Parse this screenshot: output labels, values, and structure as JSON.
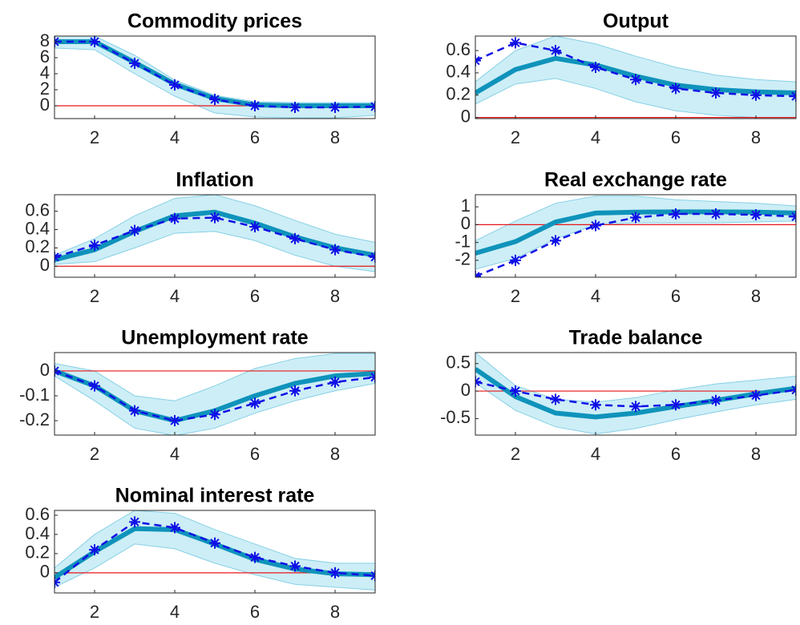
{
  "chart_data": [
    {
      "type": "line",
      "title": "Commodity prices",
      "x": [
        1,
        2,
        3,
        4,
        5,
        6,
        7,
        8,
        9
      ],
      "xlim": [
        1,
        9
      ],
      "xticks": [
        2,
        4,
        6,
        8
      ],
      "ylim": [
        -1.6,
        8.7
      ],
      "yticks": [
        0,
        2,
        4,
        6,
        8
      ],
      "hline": 0,
      "hline_color": "#e8161b",
      "band": {
        "color": "#cdeef6",
        "edge_color": "#86d0e6",
        "upper": [
          8.7,
          8.7,
          6.3,
          3.2,
          1.3,
          0.5,
          0.4,
          0.4,
          0.4
        ],
        "lower": [
          7.2,
          7.0,
          4.0,
          1.2,
          -0.9,
          -1.4,
          -1.5,
          -1.5,
          -1.2
        ]
      },
      "series": [
        {
          "color": "#0f93bb",
          "style": "solid",
          "values": [
            8.0,
            8.0,
            5.4,
            2.7,
            0.9,
            0.1,
            0.0,
            0.0,
            0.0
          ]
        },
        {
          "color": "#1010e6",
          "style": "dashed",
          "marker": "asterisk",
          "values": [
            8.0,
            8.0,
            5.3,
            2.6,
            0.8,
            0.0,
            -0.2,
            -0.2,
            -0.1
          ]
        }
      ]
    },
    {
      "type": "line",
      "title": "Output",
      "x": [
        1,
        2,
        3,
        4,
        5,
        6,
        7,
        8,
        9
      ],
      "xlim": [
        1,
        9
      ],
      "xticks": [
        2,
        4,
        6,
        8
      ],
      "ylim": [
        -0.01,
        0.73
      ],
      "yticks": [
        0,
        0.2,
        0.4,
        0.6
      ],
      "hline": 0,
      "hline_color": "#e8161b",
      "band": {
        "color": "#cdeef6",
        "edge_color": "#86d0e6",
        "upper": [
          0.32,
          0.6,
          0.73,
          0.66,
          0.55,
          0.45,
          0.38,
          0.34,
          0.32
        ],
        "lower": [
          0.12,
          0.3,
          0.35,
          0.26,
          0.14,
          0.06,
          0.02,
          0.0,
          0.0
        ]
      },
      "series": [
        {
          "color": "#0f93bb",
          "style": "solid",
          "values": [
            0.22,
            0.43,
            0.53,
            0.47,
            0.37,
            0.29,
            0.25,
            0.23,
            0.22
          ]
        },
        {
          "color": "#1010e6",
          "style": "dashed",
          "marker": "asterisk",
          "values": [
            0.51,
            0.67,
            0.6,
            0.45,
            0.34,
            0.26,
            0.22,
            0.2,
            0.19
          ]
        }
      ]
    },
    {
      "type": "line",
      "title": "Inflation",
      "x": [
        1,
        2,
        3,
        4,
        5,
        6,
        7,
        8,
        9
      ],
      "xlim": [
        1,
        9
      ],
      "xticks": [
        2,
        4,
        6,
        8
      ],
      "ylim": [
        -0.12,
        0.78
      ],
      "yticks": [
        0,
        0.2,
        0.4,
        0.6
      ],
      "hline": 0,
      "hline_color": "#e8161b",
      "band": {
        "color": "#cdeef6",
        "edge_color": "#86d0e6",
        "upper": [
          0.12,
          0.3,
          0.55,
          0.74,
          0.78,
          0.66,
          0.5,
          0.35,
          0.26
        ],
        "lower": [
          0.02,
          0.05,
          0.2,
          0.36,
          0.38,
          0.28,
          0.12,
          0.0,
          -0.06
        ]
      },
      "series": [
        {
          "color": "#0f93bb",
          "style": "solid",
          "values": [
            0.07,
            0.18,
            0.38,
            0.55,
            0.59,
            0.47,
            0.32,
            0.2,
            0.12
          ]
        },
        {
          "color": "#1010e6",
          "style": "dashed",
          "marker": "asterisk",
          "values": [
            0.1,
            0.23,
            0.39,
            0.52,
            0.53,
            0.43,
            0.3,
            0.18,
            0.1
          ]
        }
      ]
    },
    {
      "type": "line",
      "title": "Real exchange rate",
      "x": [
        1,
        2,
        3,
        4,
        5,
        6,
        7,
        8,
        9
      ],
      "xlim": [
        1,
        9
      ],
      "xticks": [
        2,
        4,
        6,
        8
      ],
      "ylim": [
        -2.95,
        1.68
      ],
      "yticks": [
        -2,
        -1,
        0,
        1
      ],
      "hline": 0,
      "hline_color": "#e8161b",
      "band": {
        "color": "#cdeef6",
        "edge_color": "#86d0e6",
        "upper": [
          -0.9,
          0.2,
          1.2,
          1.6,
          1.6,
          1.4,
          1.3,
          1.2,
          1.05
        ],
        "lower": [
          -2.5,
          -1.9,
          -0.8,
          0,
          0.1,
          0.1,
          0.1,
          0.15,
          0.2
        ]
      },
      "series": [
        {
          "color": "#0f93bb",
          "style": "solid",
          "values": [
            -1.6,
            -0.95,
            0.15,
            0.65,
            0.7,
            0.72,
            0.72,
            0.7,
            0.65
          ]
        },
        {
          "color": "#1010e6",
          "style": "dashed",
          "marker": "asterisk",
          "values": [
            -2.9,
            -2.0,
            -0.9,
            -0.05,
            0.4,
            0.6,
            0.6,
            0.55,
            0.45
          ]
        }
      ]
    },
    {
      "type": "line",
      "title": "Unemployment rate",
      "x": [
        1,
        2,
        3,
        4,
        5,
        6,
        7,
        8,
        9
      ],
      "xlim": [
        1,
        9
      ],
      "xticks": [
        2,
        4,
        6,
        8
      ],
      "ylim": [
        -0.258,
        0.074
      ],
      "yticks": [
        -0.2,
        -0.1,
        0
      ],
      "hline": 0,
      "hline_color": "#e8161b",
      "band": {
        "color": "#cdeef6",
        "edge_color": "#86d0e6",
        "upper": [
          0.03,
          0,
          -0.1,
          -0.12,
          -0.06,
          0.01,
          0.05,
          0.07,
          0.07
        ],
        "lower": [
          -0.02,
          -0.12,
          -0.23,
          -0.26,
          -0.23,
          -0.17,
          -0.12,
          -0.08,
          -0.05
        ]
      },
      "series": [
        {
          "color": "#0f93bb",
          "style": "solid",
          "values": [
            0,
            -0.06,
            -0.16,
            -0.2,
            -0.16,
            -0.1,
            -0.05,
            -0.02,
            -0.01
          ]
        },
        {
          "color": "#1010e6",
          "style": "dashed",
          "marker": "asterisk",
          "values": [
            0,
            -0.06,
            -0.16,
            -0.2,
            -0.175,
            -0.13,
            -0.08,
            -0.045,
            -0.025
          ]
        }
      ]
    },
    {
      "type": "line",
      "title": "Trade balance",
      "x": [
        1,
        2,
        3,
        4,
        5,
        6,
        7,
        8,
        9
      ],
      "xlim": [
        1,
        9
      ],
      "xticks": [
        2,
        4,
        6,
        8
      ],
      "ylim": [
        -0.8,
        0.7
      ],
      "yticks": [
        -0.5,
        0,
        0.5
      ],
      "hline": 0,
      "hline_color": "#e8161b",
      "band": {
        "color": "#cdeef6",
        "edge_color": "#86d0e6",
        "upper": [
          0.7,
          0.1,
          -0.15,
          -0.2,
          -0.12,
          0.02,
          0.13,
          0.2,
          0.27
        ],
        "lower": [
          0.15,
          -0.35,
          -0.65,
          -0.78,
          -0.68,
          -0.52,
          -0.38,
          -0.25,
          -0.15
        ]
      },
      "series": [
        {
          "color": "#0f93bb",
          "style": "solid",
          "values": [
            0.4,
            -0.1,
            -0.4,
            -0.47,
            -0.4,
            -0.28,
            -0.17,
            -0.05,
            0.05
          ]
        },
        {
          "color": "#1010e6",
          "style": "dashed",
          "marker": "asterisk",
          "values": [
            0.17,
            0.0,
            -0.15,
            -0.25,
            -0.28,
            -0.25,
            -0.17,
            -0.08,
            0.02
          ]
        }
      ]
    },
    {
      "type": "line",
      "title": "Nominal interest rate",
      "x": [
        1,
        2,
        3,
        4,
        5,
        6,
        7,
        8,
        9
      ],
      "xlim": [
        1,
        9
      ],
      "xticks": [
        2,
        4,
        6,
        8
      ],
      "ylim": [
        -0.21,
        0.65
      ],
      "yticks": [
        0,
        0.2,
        0.4,
        0.6
      ],
      "hline": 0,
      "hline_color": "#e8161b",
      "band": {
        "color": "#cdeef6",
        "edge_color": "#86d0e6",
        "upper": [
          0.05,
          0.4,
          0.65,
          0.62,
          0.45,
          0.3,
          0.15,
          0.1,
          0.1
        ],
        "lower": [
          -0.15,
          0.05,
          0.3,
          0.25,
          0.1,
          -0.02,
          -0.12,
          -0.15,
          -0.18
        ]
      },
      "series": [
        {
          "color": "#0f93bb",
          "style": "solid",
          "values": [
            -0.05,
            0.22,
            0.46,
            0.45,
            0.3,
            0.14,
            0.04,
            -0.01,
            -0.02
          ]
        },
        {
          "color": "#1010e6",
          "style": "dashed",
          "marker": "asterisk",
          "values": [
            -0.1,
            0.24,
            0.53,
            0.47,
            0.31,
            0.16,
            0.07,
            0.0,
            -0.03
          ]
        }
      ]
    }
  ]
}
